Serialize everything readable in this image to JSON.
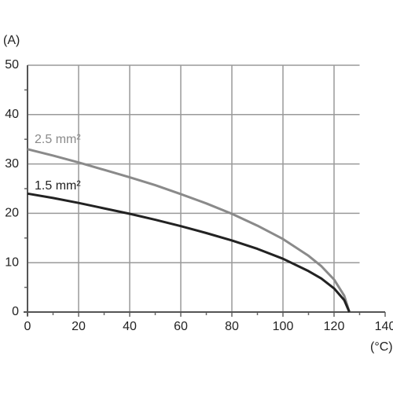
{
  "chart_data": {
    "type": "line",
    "y_label": "(A)",
    "x_label": "(°C)",
    "x": [
      0,
      10,
      20,
      30,
      40,
      50,
      60,
      70,
      80,
      90,
      100,
      110,
      115,
      120,
      124,
      126
    ],
    "series": [
      {
        "name": "2.5 mm²",
        "color": "#8a8a8a",
        "values": [
          33,
          31.7,
          30.3,
          28.8,
          27.3,
          25.7,
          23.9,
          22,
          19.9,
          17.5,
          14.8,
          11.4,
          9.3,
          6.6,
          3.3,
          0
        ]
      },
      {
        "name": "1.5 mm²",
        "color": "#222222",
        "values": [
          24,
          23.1,
          22.1,
          21,
          19.9,
          18.7,
          17.4,
          16,
          14.5,
          12.8,
          10.8,
          8.3,
          6.8,
          4.8,
          2.4,
          0
        ]
      }
    ],
    "xlim": [
      0,
      140
    ],
    "xticks": [
      0,
      20,
      40,
      60,
      80,
      100,
      120,
      140
    ],
    "ylim": [
      0,
      50
    ],
    "yticks": [
      0,
      10,
      20,
      30,
      40,
      50
    ],
    "xminorticks": [
      10,
      30,
      50,
      70,
      90,
      110,
      130
    ],
    "yminorticks": [
      5,
      15,
      25,
      35,
      45
    ],
    "grid": true
  }
}
